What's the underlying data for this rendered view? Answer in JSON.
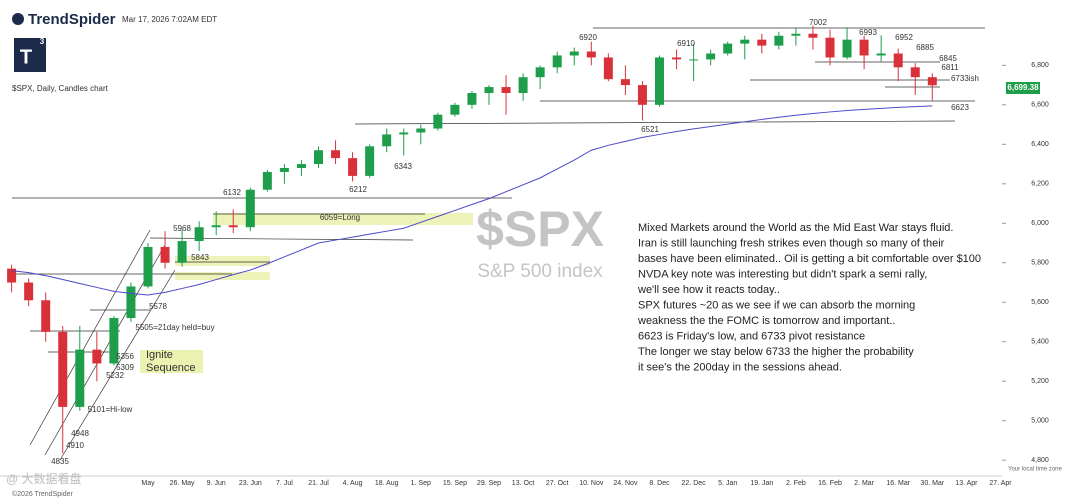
{
  "header": {
    "brand": "TrendSpider",
    "timestamp": "Mar 17, 2026 7:02AM EDT",
    "logo": "T",
    "logo_sup": "3",
    "subtitle": "$SPX, Daily, Candles chart",
    "watermark_symbol": "$SPX",
    "watermark_name": "S&P 500 index",
    "last_price": "6,699.38",
    "timezone_note": "Your local time zone",
    "copyright": "©2026 TrendSpider",
    "corner_mark": "@ 大数据看盘"
  },
  "commentary": [
    "Mixed Markets around the World as the Mid East War stays fluid.",
    "Iran is still launching fresh strikes even though so many of their",
    "bases have been eliminated.. Oil is getting a bit comfortable over $100",
    "NVDA key note was interesting but didn't spark a semi rally,",
    "we'll see how it reacts today..",
    "SPX futures ~20 as we see if we can absorb the morning",
    "weakness the the FOMC is tomorrow and important..",
    "6623 is Friday's low, and 6733 pivot resistance",
    "The longer we stay below 6733 the higher the probability",
    "it see's the 200day in the sessions ahead."
  ],
  "annotations": [
    "6920",
    "6910",
    "7002",
    "6993",
    "6952",
    "6885",
    "6845",
    "6811",
    "6733ish",
    "6623",
    "6521",
    "6343",
    "6212",
    "6132",
    "6059=Long",
    "5968",
    "5843",
    "5578",
    "5505=21day held=buy",
    "5356",
    "5309",
    "5232",
    "5101=Hi-low",
    "4948",
    "4910",
    "4835",
    "Ignite",
    "Sequence"
  ],
  "chart_data": {
    "type": "candlestick",
    "up_color": "#1e9e4a",
    "down_color": "#d8313a",
    "categories": [
      null,
      null,
      null,
      null,
      null,
      null,
      null,
      null,
      "May",
      null,
      "26. May",
      null,
      "9. Jun",
      null,
      "23. Jun",
      null,
      "7. Jul",
      null,
      "21. Jul",
      null,
      "4. Aug",
      null,
      "18. Aug",
      null,
      "1. Sep",
      null,
      "15. Sep",
      null,
      "29. Sep",
      null,
      "13. Oct",
      null,
      "27. Oct",
      null,
      "10. Nov",
      null,
      "24. Nov",
      null,
      "8. Dec",
      null,
      "22. Dec",
      null,
      "5. Jan",
      null,
      "19. Jan",
      null,
      "2. Feb",
      null,
      "16. Feb",
      null,
      "2. Mar",
      null,
      "16. Mar",
      null,
      "30. Mar",
      null,
      "13. Apr",
      null,
      "27. Apr"
    ],
    "open": [
      5770,
      5700,
      5610,
      5450,
      5070,
      5360,
      5290,
      5520,
      5680,
      5880,
      5800,
      5910,
      5980,
      5990,
      5980,
      6170,
      6260,
      6280,
      6300,
      6370,
      6330,
      6240,
      6390,
      6450,
      6460,
      6480,
      6550,
      6600,
      6660,
      6690,
      6660,
      6740,
      6790,
      6850,
      6870,
      6840,
      6730,
      6700,
      6600,
      6840,
      6830,
      6830,
      6860,
      6910,
      6930,
      6900,
      6950,
      6960,
      6940,
      6840,
      6930,
      6850,
      6860,
      6790,
      6740,
      null,
      null,
      null,
      null
    ],
    "high": [
      5790,
      5720,
      5650,
      5480,
      5480,
      5450,
      5530,
      5700,
      5900,
      5960,
      5968,
      6010,
      6060,
      6070,
      6180,
      6270,
      6300,
      6320,
      6390,
      6420,
      6360,
      6400,
      6480,
      6480,
      6500,
      6560,
      6610,
      6670,
      6700,
      6750,
      6760,
      6800,
      6870,
      6890,
      6920,
      6860,
      6800,
      6720,
      6850,
      6880,
      6910,
      6880,
      6920,
      6950,
      6960,
      6970,
      6990,
      7002,
      6980,
      6993,
      6950,
      6952,
      6885,
      6811,
      6760,
      null,
      null,
      null,
      null
    ],
    "low": [
      5650,
      5580,
      5400,
      4835,
      5050,
      5200,
      5280,
      5500,
      5670,
      5770,
      5780,
      5860,
      5940,
      5950,
      5960,
      6160,
      6200,
      6240,
      6280,
      6300,
      6212,
      6230,
      6360,
      6343,
      6400,
      6470,
      6540,
      6580,
      6600,
      6550,
      6620,
      6680,
      6760,
      6800,
      6800,
      6720,
      6650,
      6521,
      6590,
      6780,
      6720,
      6800,
      6850,
      6830,
      6860,
      6880,
      6900,
      6880,
      6800,
      6830,
      6780,
      6820,
      6720,
      6650,
      6623,
      null,
      null,
      null,
      null
    ],
    "close": [
      5700,
      5610,
      5450,
      5070,
      5360,
      5290,
      5520,
      5680,
      5880,
      5800,
      5910,
      5980,
      5990,
      5980,
      6170,
      6260,
      6280,
      6300,
      6370,
      6330,
      6240,
      6390,
      6450,
      6460,
      6480,
      6550,
      6600,
      6660,
      6690,
      6660,
      6740,
      6790,
      6850,
      6870,
      6840,
      6730,
      6700,
      6600,
      6840,
      6830,
      6830,
      6860,
      6910,
      6930,
      6900,
      6950,
      6960,
      6940,
      6840,
      6930,
      6850,
      6860,
      6790,
      6740,
      6699,
      null,
      null,
      null,
      null
    ],
    "series": [
      {
        "color": "#4b48c8",
        "values": [
          5760,
          5750,
          5735,
          5715,
          5695,
          5675,
          5655,
          5645,
          5637,
          5650,
          5670,
          5690,
          5715,
          5740,
          5763,
          5795,
          5830,
          5865,
          5900,
          5915,
          5930,
          5945,
          5960,
          5975,
          6005,
          6035,
          6065,
          6095,
          6125,
          6160,
          6195,
          6230,
          6275,
          6320,
          6370,
          6395,
          6415,
          6435,
          6450,
          6465,
          6478,
          6490,
          6502,
          6514,
          6526,
          6537,
          6547,
          6556,
          6564,
          6571,
          6577,
          6582,
          6587,
          6591,
          6595,
          null,
          null,
          null,
          null
        ]
      }
    ],
    "ylim": [
      4725,
      7055
    ],
    "yticks": [
      {
        "value": 4800,
        "label": "4,800"
      },
      {
        "value": 5000,
        "label": "5,000"
      },
      {
        "value": 5200,
        "label": "5,200"
      },
      {
        "value": 5400,
        "label": "5,400"
      },
      {
        "value": 5600,
        "label": "5,600"
      },
      {
        "value": 5800,
        "label": "5,800"
      },
      {
        "value": 6000,
        "label": "6,000"
      },
      {
        "value": 6200,
        "label": "6,200"
      },
      {
        "value": 6400,
        "label": "6,400"
      },
      {
        "value": 6600,
        "label": "6,600"
      },
      {
        "value": 6800,
        "label": "6,800"
      }
    ]
  }
}
